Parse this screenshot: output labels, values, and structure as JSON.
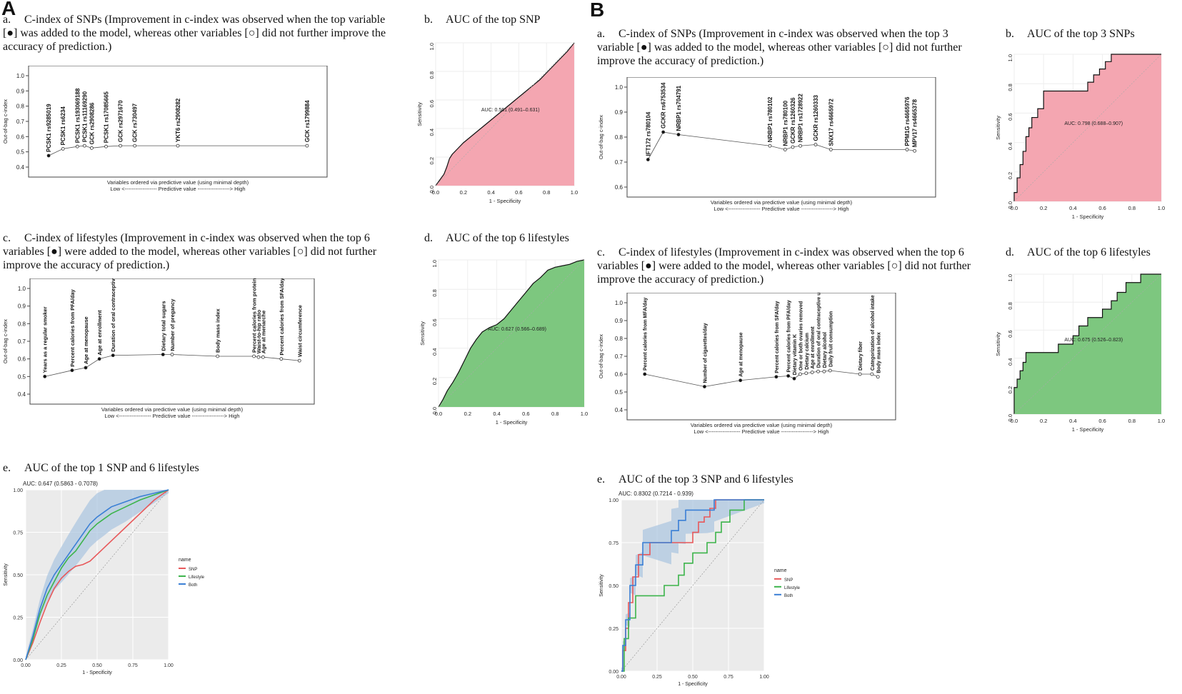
{
  "panels": {
    "A": "A",
    "B": "B"
  },
  "captions": {
    "A_a": {
      "label": "a.",
      "text": "C-index of SNPs (Improvement in c-index was observed when the top variable [●] was added to the model, whereas other variables [○] did not further improve the accuracy of prediction.)"
    },
    "A_b": {
      "label": "b.",
      "text": "AUC of the top SNP"
    },
    "A_c": {
      "label": "c.",
      "text": "C-index of lifestyles (Improvement in c-index was observed when the top 6 variables [●] were added to the model, whereas other variables [○] did not further improve the accuracy of prediction.)"
    },
    "A_d": {
      "label": "d.",
      "text": "AUC of the top 6 lifestyles"
    },
    "A_e": {
      "label": "e.",
      "text": "AUC of the top 1 SNP and 6 lifestyles"
    },
    "B_a": {
      "label": "a.",
      "text": "C-index of SNPs (Improvement in c-index was observed when the top 3 variable [●] was added to the model, whereas other variables [○] did not further improve the accuracy of prediction.)"
    },
    "B_b": {
      "label": "b.",
      "text": "AUC of the top 3 SNPs"
    },
    "B_c": {
      "label": "c.",
      "text": "C-index of lifestyles (Improvement in c-index was observed when the top 6 variables [●] were added to the model, whereas other variables [○] did not further improve the accuracy of prediction.)"
    },
    "B_d": {
      "label": "d.",
      "text": "AUC of the top 6 lifestyles"
    },
    "B_e": {
      "label": "e.",
      "text": "AUC of the top 3 SNP and 6 lifestyles"
    }
  },
  "chart_data": [
    {
      "id": "A_a",
      "type": "line",
      "title": "",
      "xlabel": "Variables ordered via predictive value (using minimal depth)",
      "xlabel2": "Low <------------------ Predictive value ------------------> High",
      "ylabel": "Out-of-bag c-index",
      "ylim": [
        0.4,
        1.0
      ],
      "yticks": [
        "0.4",
        "0.5",
        "0.6",
        "0.7",
        "0.8",
        "0.9",
        "1.0"
      ],
      "categories": [
        "PCSK1 rs9285019",
        "PCSK1 rs6234",
        "PCSK1 rs193069188",
        "PCSK1 rs11169290",
        "GCK rs2908286",
        "PCSK1 rs17085665",
        "GCK rs2971670",
        "GCK rs730497",
        "YKT6 rs2908282",
        "GCK rs1799884"
      ],
      "x": [
        1,
        2,
        3,
        3.5,
        4,
        5,
        6,
        7,
        10,
        19
      ],
      "values": [
        0.475,
        0.52,
        0.535,
        0.54,
        0.525,
        0.535,
        0.54,
        0.54,
        0.54,
        0.54
      ],
      "filled": [
        true,
        false,
        false,
        false,
        false,
        false,
        false,
        false,
        false,
        false
      ]
    },
    {
      "id": "A_b",
      "type": "area",
      "xlabel": "1 - Specificity",
      "ylabel": "Sensitivity",
      "ticks": [
        "0.0",
        "0.2",
        "0.4",
        "0.6",
        "0.8",
        "1.0"
      ],
      "auc_label": "AUC: 0.561 (0.491–0.631)",
      "fill": "#f4a6b1",
      "x": [
        0,
        0.03,
        0.06,
        0.08,
        0.1,
        0.12,
        0.16,
        0.2,
        0.25,
        0.3,
        0.35,
        0.4,
        0.45,
        0.5,
        0.55,
        0.6,
        0.65,
        0.7,
        0.75,
        0.8,
        0.85,
        0.9,
        0.95,
        1.0
      ],
      "y": [
        0,
        0.04,
        0.08,
        0.13,
        0.19,
        0.22,
        0.26,
        0.3,
        0.34,
        0.38,
        0.42,
        0.46,
        0.5,
        0.54,
        0.58,
        0.62,
        0.66,
        0.7,
        0.74,
        0.79,
        0.84,
        0.89,
        0.94,
        1.0
      ]
    },
    {
      "id": "A_c",
      "type": "line",
      "xlabel": "Variables ordered via predictive value (using minimal depth)",
      "xlabel2": "Low <------------------ Predictive value ------------------> High",
      "ylabel": "Out-of-bag c-index",
      "ylim": [
        0.4,
        1.0
      ],
      "yticks": [
        "0.4",
        "0.5",
        "0.6",
        "0.7",
        "0.8",
        "0.9",
        "1.0"
      ],
      "categories": [
        "Years as a regular smoker",
        "Percent calories from PFA/day",
        "Age at menopause",
        "Age at enrollment",
        "Duration of oral contraceptive use",
        "Dietary total sugars",
        "Number of pregancy",
        "Body mass index",
        "Percent calories from protein/day",
        "Waist-to-hip ratio",
        "Age at menarche",
        "Percent calories from SFA/day",
        "Waist circumference"
      ],
      "x": [
        1,
        4,
        5.5,
        7,
        8.5,
        14,
        15,
        20,
        24,
        24.5,
        25,
        27,
        29
      ],
      "values": [
        0.5,
        0.535,
        0.55,
        0.6,
        0.62,
        0.625,
        0.625,
        0.615,
        0.615,
        0.61,
        0.61,
        0.6,
        0.59
      ],
      "filled": [
        true,
        true,
        true,
        true,
        true,
        true,
        false,
        false,
        false,
        false,
        false,
        false,
        false
      ]
    },
    {
      "id": "A_d",
      "type": "area",
      "xlabel": "1 - Specificity",
      "ylabel": "Sensitivity",
      "ticks": [
        "0.0",
        "0.2",
        "0.4",
        "0.6",
        "0.8",
        "1.0"
      ],
      "auc_label": "AUC: 0.627 (0.566–0.689)",
      "fill": "#7dc77f",
      "x": [
        0,
        0.03,
        0.06,
        0.1,
        0.14,
        0.18,
        0.22,
        0.26,
        0.3,
        0.35,
        0.4,
        0.45,
        0.5,
        0.55,
        0.6,
        0.65,
        0.7,
        0.75,
        0.8,
        0.85,
        0.9,
        0.95,
        1.0
      ],
      "y": [
        0,
        0.05,
        0.11,
        0.17,
        0.24,
        0.32,
        0.4,
        0.46,
        0.51,
        0.54,
        0.56,
        0.6,
        0.66,
        0.72,
        0.78,
        0.84,
        0.88,
        0.93,
        0.95,
        0.96,
        0.97,
        0.99,
        1.0
      ]
    },
    {
      "id": "A_e",
      "type": "line",
      "auc_label": "AUC: 0.647 (0.5863 - 0.7078)",
      "xlabel": "1 - Specificity",
      "ylabel": "Sensitivity",
      "xticks": [
        "0.00",
        "0.25",
        "0.50",
        "0.75",
        "1.00"
      ],
      "yticks": [
        "0.00",
        "0.25",
        "0.50",
        "0.75",
        "1.00"
      ],
      "legend_title": "name",
      "legend_position": "right",
      "series": [
        {
          "name": "SNP",
          "color": "#e8585a",
          "x": [
            0,
            0.05,
            0.1,
            0.15,
            0.2,
            0.25,
            0.3,
            0.35,
            0.4,
            0.45,
            0.5,
            0.55,
            0.6,
            0.7,
            0.8,
            0.9,
            1.0
          ],
          "y": [
            0,
            0.1,
            0.22,
            0.33,
            0.42,
            0.48,
            0.52,
            0.55,
            0.56,
            0.58,
            0.62,
            0.66,
            0.7,
            0.78,
            0.86,
            0.94,
            1.0
          ]
        },
        {
          "name": "Lifestyle",
          "color": "#3cb44b",
          "x": [
            0,
            0.05,
            0.1,
            0.15,
            0.2,
            0.25,
            0.3,
            0.35,
            0.4,
            0.45,
            0.5,
            0.55,
            0.6,
            0.7,
            0.8,
            0.9,
            1.0
          ],
          "y": [
            0,
            0.12,
            0.27,
            0.38,
            0.46,
            0.54,
            0.6,
            0.64,
            0.7,
            0.76,
            0.8,
            0.83,
            0.86,
            0.9,
            0.94,
            0.97,
            1.0
          ]
        },
        {
          "name": "Both",
          "color": "#3a7fd5",
          "x": [
            0,
            0.05,
            0.1,
            0.15,
            0.2,
            0.25,
            0.3,
            0.35,
            0.4,
            0.45,
            0.5,
            0.55,
            0.6,
            0.7,
            0.8,
            0.9,
            1.0
          ],
          "y": [
            0,
            0.14,
            0.3,
            0.42,
            0.5,
            0.56,
            0.62,
            0.68,
            0.74,
            0.8,
            0.84,
            0.87,
            0.9,
            0.93,
            0.96,
            0.98,
            1.0
          ]
        }
      ]
    },
    {
      "id": "B_a",
      "type": "line",
      "xlabel": "Variables ordered via predictive value (using minimal depth)",
      "xlabel2": "Low <------------------ Predictive value ------------------> High",
      "ylabel": "Out-of-bag c-index",
      "ylim": [
        0.6,
        1.0
      ],
      "yticks": [
        "0.6",
        "0.7",
        "0.8",
        "0.9",
        "1.0"
      ],
      "categories": [
        "IFT172 rs780104",
        "GCKR rs6753534",
        "NRBP1 rs704791",
        "NRBP1 rs780102",
        "NRBP1 rs780100",
        "GCKR rs1260326",
        "NRBP1 rs1728922",
        "GCKR rs1260333",
        "SNX17 rs4665972",
        "PPM1G rs4665976",
        "MPV17 rs4665378"
      ],
      "x": [
        1,
        2,
        3,
        9,
        10,
        10.5,
        11,
        12,
        13,
        18,
        18.5
      ],
      "values": [
        0.71,
        0.82,
        0.81,
        0.765,
        0.75,
        0.76,
        0.765,
        0.77,
        0.75,
        0.75,
        0.745
      ],
      "filled": [
        true,
        true,
        true,
        false,
        false,
        false,
        false,
        false,
        false,
        false,
        false
      ]
    },
    {
      "id": "B_b",
      "type": "area",
      "xlabel": "1 - Specificity",
      "ylabel": "Sensitivity",
      "ticks": [
        "0.0",
        "0.2",
        "0.4",
        "0.6",
        "0.8",
        "1.0"
      ],
      "auc_label": "AUC: 0.798 (0.688–0.907)",
      "fill": "#f4a6b1",
      "x": [
        0,
        0,
        0.02,
        0.02,
        0.04,
        0.04,
        0.06,
        0.06,
        0.08,
        0.08,
        0.1,
        0.1,
        0.12,
        0.12,
        0.16,
        0.16,
        0.2,
        0.2,
        0.5,
        0.5,
        0.54,
        0.54,
        0.58,
        0.58,
        0.62,
        0.62,
        0.66,
        0.66,
        1.0
      ],
      "y": [
        0,
        0.06,
        0.06,
        0.16,
        0.16,
        0.25,
        0.25,
        0.34,
        0.34,
        0.44,
        0.44,
        0.5,
        0.5,
        0.57,
        0.57,
        0.63,
        0.63,
        0.75,
        0.75,
        0.81,
        0.81,
        0.86,
        0.86,
        0.9,
        0.9,
        0.95,
        0.95,
        1.0,
        1.0
      ]
    },
    {
      "id": "B_c",
      "type": "line",
      "xlabel": "Variables ordered via predictive value (using minimal depth)",
      "xlabel2": "Low <------------------ Predictive value ------------------> High",
      "ylabel": "Out-of-bag c-index",
      "ylim": [
        0.4,
        1.0
      ],
      "yticks": [
        "0.4",
        "0.5",
        "0.6",
        "0.7",
        "0.8",
        "0.9",
        "1.0"
      ],
      "categories": [
        "Percent calories from MFA/day",
        "Number of cigarettes/day",
        "Age at menopause",
        "Percent calories from SFA/day",
        "Percent calories from PFA/day",
        "Dietary vitamin K",
        "One or both ovaries removed",
        "Dietary calcium",
        "Age at enrollment",
        "Duration of oral contraceptive use",
        "Dietary alcohol",
        "Daily fruit consumption",
        "Dietary fiber",
        "Categorization of alcohol intake",
        "Body mass index"
      ],
      "x": [
        1,
        6,
        9,
        12,
        13,
        13.5,
        14,
        14.5,
        15,
        15.5,
        16,
        16.5,
        19,
        20,
        20.5
      ],
      "values": [
        0.6,
        0.53,
        0.565,
        0.585,
        0.59,
        0.575,
        0.6,
        0.605,
        0.61,
        0.615,
        0.615,
        0.62,
        0.6,
        0.6,
        0.585
      ],
      "filled": [
        true,
        true,
        true,
        true,
        true,
        true,
        false,
        false,
        false,
        false,
        false,
        false,
        false,
        false,
        false
      ]
    },
    {
      "id": "B_d",
      "type": "area",
      "xlabel": "1 - Specificity",
      "ylabel": "Sensitivity",
      "ticks": [
        "0.0",
        "0.2",
        "0.4",
        "0.6",
        "0.8",
        "1.0"
      ],
      "auc_label": "AUC: 0.675 (0.526–0.823)",
      "fill": "#7dc77f",
      "x": [
        0,
        0,
        0.02,
        0.02,
        0.04,
        0.04,
        0.06,
        0.06,
        0.08,
        0.08,
        0.1,
        0.1,
        0.3,
        0.3,
        0.4,
        0.4,
        0.44,
        0.44,
        0.5,
        0.5,
        0.6,
        0.6,
        0.66,
        0.66,
        0.7,
        0.7,
        0.76,
        0.76,
        0.86,
        0.86,
        1.0
      ],
      "y": [
        0,
        0.19,
        0.19,
        0.25,
        0.25,
        0.31,
        0.31,
        0.37,
        0.37,
        0.44,
        0.44,
        0.44,
        0.44,
        0.5,
        0.5,
        0.56,
        0.56,
        0.63,
        0.63,
        0.69,
        0.69,
        0.75,
        0.75,
        0.81,
        0.81,
        0.87,
        0.87,
        0.94,
        0.94,
        1.0,
        1.0
      ]
    },
    {
      "id": "B_e",
      "type": "line",
      "auc_label": "AUC: 0.8302 (0.7214 - 0.939)",
      "xlabel": "1 - Specificity",
      "ylabel": "Sensitivity",
      "xticks": [
        "0.00",
        "0.25",
        "0.50",
        "0.75",
        "1.00"
      ],
      "yticks": [
        "0.00",
        "0.25",
        "0.50",
        "0.75",
        "1.00"
      ],
      "legend_title": "name",
      "legend_position": "right",
      "series": [
        {
          "name": "SNP",
          "color": "#e8585a",
          "x": [
            0,
            0.01,
            0.01,
            0.03,
            0.03,
            0.05,
            0.05,
            0.08,
            0.08,
            0.12,
            0.12,
            0.2,
            0.2,
            0.5,
            0.5,
            0.54,
            0.54,
            0.58,
            0.58,
            0.62,
            0.62,
            0.66,
            0.66,
            1.0
          ],
          "y": [
            0,
            0,
            0.12,
            0.12,
            0.25,
            0.25,
            0.4,
            0.4,
            0.55,
            0.55,
            0.68,
            0.68,
            0.75,
            0.75,
            0.81,
            0.81,
            0.87,
            0.87,
            0.9,
            0.9,
            0.95,
            0.95,
            1.0,
            1.0
          ]
        },
        {
          "name": "Lifestyle",
          "color": "#3cb44b",
          "x": [
            0,
            0.02,
            0.02,
            0.05,
            0.05,
            0.1,
            0.1,
            0.3,
            0.3,
            0.4,
            0.4,
            0.44,
            0.44,
            0.5,
            0.5,
            0.6,
            0.6,
            0.66,
            0.66,
            0.7,
            0.7,
            0.76,
            0.76,
            0.86,
            0.86,
            1.0
          ],
          "y": [
            0,
            0,
            0.19,
            0.19,
            0.31,
            0.31,
            0.44,
            0.44,
            0.5,
            0.5,
            0.56,
            0.56,
            0.63,
            0.63,
            0.69,
            0.69,
            0.75,
            0.75,
            0.81,
            0.81,
            0.87,
            0.87,
            0.94,
            0.94,
            1.0,
            1.0
          ]
        },
        {
          "name": "Both",
          "color": "#3a7fd5",
          "x": [
            0,
            0.01,
            0.01,
            0.03,
            0.03,
            0.06,
            0.06,
            0.1,
            0.1,
            0.15,
            0.15,
            0.35,
            0.35,
            0.4,
            0.4,
            0.45,
            0.45,
            0.6,
            0.6,
            0.65,
            0.65,
            1.0
          ],
          "y": [
            0,
            0,
            0.15,
            0.15,
            0.3,
            0.3,
            0.5,
            0.5,
            0.62,
            0.62,
            0.75,
            0.75,
            0.82,
            0.82,
            0.88,
            0.88,
            0.94,
            0.94,
            0.94,
            0.94,
            1.0,
            1.0
          ]
        }
      ]
    }
  ]
}
